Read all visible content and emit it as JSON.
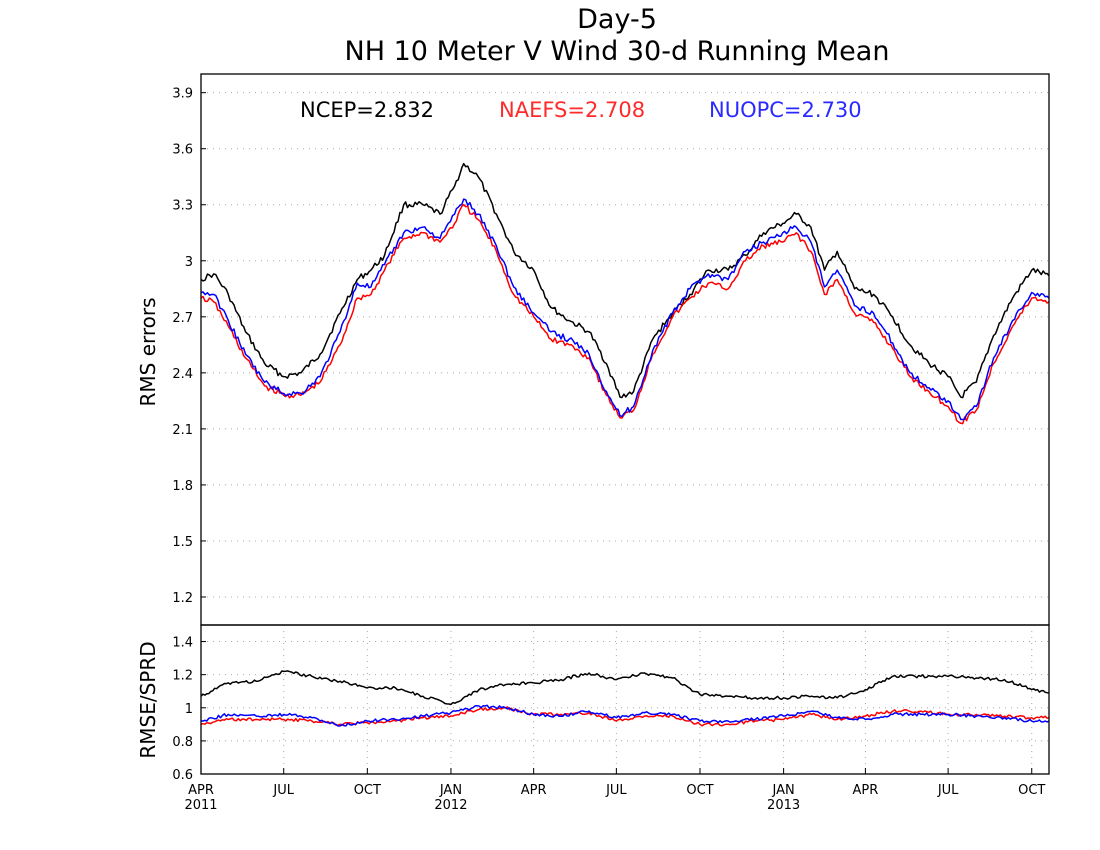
{
  "chart_data": [
    {
      "type": "line",
      "title": "Day-5",
      "subtitle": "NH 10 Meter V Wind 30-d Running Mean",
      "ylabel": "RMS errors",
      "xlabel": "",
      "xlim": [
        "2011-04-01",
        "2013-10-20"
      ],
      "ylim": [
        1.05,
        4.0
      ],
      "yticks": [
        1.2,
        1.5,
        1.8,
        2.1,
        2.4,
        2.7,
        3.0,
        3.3,
        3.6,
        3.9
      ],
      "ytick_labels": [
        "1.2",
        "1.5",
        "1.8",
        "2.1",
        "2.4",
        "2.7",
        "3",
        "3.3",
        "3.6",
        "3.9"
      ],
      "grid": true,
      "legend": "top",
      "summary_labels": [
        "NCEP=2.832",
        "NAEFS=2.708",
        "NUOPC=2.730"
      ],
      "series": [
        {
          "name": "NCEP",
          "color": "#000000",
          "x": [
            "2011-04-01",
            "2011-04-15",
            "2011-05-01",
            "2011-05-20",
            "2011-06-10",
            "2011-07-01",
            "2011-07-20",
            "2011-08-10",
            "2011-09-01",
            "2011-09-20",
            "2011-10-05",
            "2011-10-20",
            "2011-11-10",
            "2011-12-01",
            "2011-12-20",
            "2012-01-05",
            "2012-01-15",
            "2012-01-31",
            "2012-02-20",
            "2012-03-10",
            "2012-04-01",
            "2012-04-20",
            "2012-05-10",
            "2012-06-01",
            "2012-06-20",
            "2012-07-05",
            "2012-07-20",
            "2012-08-10",
            "2012-09-01",
            "2012-09-20",
            "2012-10-10",
            "2012-11-01",
            "2012-11-20",
            "2012-12-10",
            "2012-12-31",
            "2013-01-15",
            "2013-01-31",
            "2013-02-15",
            "2013-03-01",
            "2013-03-20",
            "2013-04-10",
            "2013-05-01",
            "2013-05-20",
            "2013-06-10",
            "2013-07-01",
            "2013-07-15",
            "2013-08-01",
            "2013-08-20",
            "2013-09-10",
            "2013-10-01",
            "2013-10-20"
          ],
          "values": [
            2.9,
            2.93,
            2.82,
            2.62,
            2.45,
            2.38,
            2.4,
            2.5,
            2.72,
            2.9,
            2.95,
            3.03,
            3.3,
            3.3,
            3.25,
            3.4,
            3.52,
            3.45,
            3.25,
            3.05,
            2.95,
            2.75,
            2.68,
            2.62,
            2.45,
            2.27,
            2.3,
            2.58,
            2.72,
            2.82,
            2.95,
            2.95,
            3.03,
            3.15,
            3.2,
            3.25,
            3.18,
            2.95,
            3.05,
            2.85,
            2.82,
            2.7,
            2.55,
            2.45,
            2.38,
            2.27,
            2.35,
            2.6,
            2.8,
            2.95,
            2.92
          ]
        },
        {
          "name": "NAEFS",
          "color": "#ff0000",
          "x": [
            "2011-04-01",
            "2011-04-15",
            "2011-05-01",
            "2011-05-20",
            "2011-06-10",
            "2011-07-01",
            "2011-07-20",
            "2011-08-10",
            "2011-09-01",
            "2011-09-20",
            "2011-10-05",
            "2011-10-20",
            "2011-11-10",
            "2011-12-01",
            "2011-12-20",
            "2012-01-05",
            "2012-01-15",
            "2012-01-31",
            "2012-02-20",
            "2012-03-10",
            "2012-04-01",
            "2012-04-20",
            "2012-05-10",
            "2012-06-01",
            "2012-06-20",
            "2012-07-05",
            "2012-07-20",
            "2012-08-10",
            "2012-09-01",
            "2012-09-20",
            "2012-10-10",
            "2012-11-01",
            "2012-11-20",
            "2012-12-10",
            "2012-12-31",
            "2013-01-15",
            "2013-01-31",
            "2013-02-15",
            "2013-03-01",
            "2013-03-20",
            "2013-04-10",
            "2013-05-01",
            "2013-05-20",
            "2013-06-10",
            "2013-07-01",
            "2013-07-15",
            "2013-08-01",
            "2013-08-20",
            "2013-09-10",
            "2013-10-01",
            "2013-10-20"
          ],
          "values": [
            2.8,
            2.78,
            2.65,
            2.48,
            2.33,
            2.28,
            2.28,
            2.35,
            2.55,
            2.8,
            2.82,
            2.95,
            3.12,
            3.15,
            3.1,
            3.2,
            3.3,
            3.22,
            3.05,
            2.82,
            2.7,
            2.58,
            2.55,
            2.48,
            2.28,
            2.16,
            2.2,
            2.5,
            2.7,
            2.8,
            2.88,
            2.85,
            3.0,
            3.08,
            3.1,
            3.15,
            3.05,
            2.82,
            2.9,
            2.72,
            2.67,
            2.53,
            2.38,
            2.3,
            2.22,
            2.13,
            2.2,
            2.45,
            2.65,
            2.8,
            2.78
          ]
        },
        {
          "name": "NUOPC",
          "color": "#0000ff",
          "x": [
            "2011-04-01",
            "2011-04-15",
            "2011-05-01",
            "2011-05-20",
            "2011-06-10",
            "2011-07-01",
            "2011-07-20",
            "2011-08-10",
            "2011-09-01",
            "2011-09-20",
            "2011-10-05",
            "2011-10-20",
            "2011-11-10",
            "2011-12-01",
            "2011-12-20",
            "2012-01-05",
            "2012-01-15",
            "2012-01-31",
            "2012-02-20",
            "2012-03-10",
            "2012-04-01",
            "2012-04-20",
            "2012-05-10",
            "2012-06-01",
            "2012-06-20",
            "2012-07-05",
            "2012-07-20",
            "2012-08-10",
            "2012-09-01",
            "2012-09-20",
            "2012-10-10",
            "2012-11-01",
            "2012-11-20",
            "2012-12-10",
            "2012-12-31",
            "2013-01-15",
            "2013-01-31",
            "2013-02-15",
            "2013-03-01",
            "2013-03-20",
            "2013-04-10",
            "2013-05-01",
            "2013-05-20",
            "2013-06-10",
            "2013-07-01",
            "2013-07-15",
            "2013-08-01",
            "2013-08-20",
            "2013-09-10",
            "2013-10-01",
            "2013-10-20"
          ],
          "values": [
            2.83,
            2.82,
            2.68,
            2.5,
            2.35,
            2.29,
            2.29,
            2.38,
            2.62,
            2.88,
            2.86,
            2.98,
            3.15,
            3.18,
            3.12,
            3.25,
            3.33,
            3.25,
            3.08,
            2.86,
            2.72,
            2.62,
            2.58,
            2.5,
            2.3,
            2.17,
            2.22,
            2.52,
            2.72,
            2.85,
            2.93,
            2.9,
            3.05,
            3.1,
            3.15,
            3.18,
            3.1,
            2.86,
            2.95,
            2.76,
            2.72,
            2.56,
            2.4,
            2.32,
            2.25,
            2.15,
            2.22,
            2.48,
            2.68,
            2.83,
            2.8
          ]
        }
      ]
    },
    {
      "type": "line",
      "ylabel": "RMSE/SPRD",
      "xlim": [
        "2011-04-01",
        "2013-10-20"
      ],
      "ylim": [
        0.6,
        1.5
      ],
      "yticks": [
        0.6,
        0.8,
        1.0,
        1.2,
        1.4
      ],
      "ytick_labels": [
        "0.6",
        "0.8",
        "1",
        "1.2",
        "1.4"
      ],
      "grid": true,
      "xticks": [
        "2011-04-01",
        "2011-07-01",
        "2011-10-01",
        "2012-01-01",
        "2012-04-01",
        "2012-07-01",
        "2012-10-01",
        "2013-01-01",
        "2013-04-01",
        "2013-07-01",
        "2013-10-01"
      ],
      "xtick_labels": [
        "APR",
        "JUL",
        "OCT",
        "JAN",
        "APR",
        "JUL",
        "OCT",
        "JAN",
        "APR",
        "JUL",
        "OCT"
      ],
      "year_labels": [
        "2011",
        "2012",
        "2013"
      ],
      "series": [
        {
          "name": "NCEP",
          "color": "#000000",
          "x": [
            "2011-04-01",
            "2011-05-01",
            "2011-06-01",
            "2011-07-01",
            "2011-08-01",
            "2011-09-01",
            "2011-10-01",
            "2011-11-01",
            "2011-12-01",
            "2012-01-01",
            "2012-02-01",
            "2012-03-01",
            "2012-04-01",
            "2012-05-01",
            "2012-06-01",
            "2012-07-01",
            "2012-08-01",
            "2012-09-01",
            "2012-10-01",
            "2012-11-01",
            "2012-12-01",
            "2013-01-01",
            "2013-02-01",
            "2013-03-01",
            "2013-04-01",
            "2013-05-01",
            "2013-06-01",
            "2013-07-01",
            "2013-08-01",
            "2013-09-01",
            "2013-10-01",
            "2013-10-20"
          ],
          "values": [
            1.07,
            1.15,
            1.16,
            1.22,
            1.19,
            1.16,
            1.12,
            1.12,
            1.07,
            1.02,
            1.11,
            1.14,
            1.15,
            1.17,
            1.21,
            1.17,
            1.21,
            1.18,
            1.08,
            1.07,
            1.06,
            1.06,
            1.07,
            1.06,
            1.11,
            1.19,
            1.19,
            1.19,
            1.18,
            1.17,
            1.11,
            1.09
          ]
        },
        {
          "name": "NAEFS",
          "color": "#ff0000",
          "x": [
            "2011-04-01",
            "2011-05-01",
            "2011-06-01",
            "2011-07-01",
            "2011-08-01",
            "2011-09-01",
            "2011-10-01",
            "2011-11-01",
            "2011-12-01",
            "2012-01-01",
            "2012-02-01",
            "2012-03-01",
            "2012-04-01",
            "2012-05-01",
            "2012-06-01",
            "2012-07-01",
            "2012-08-01",
            "2012-09-01",
            "2012-10-01",
            "2012-11-01",
            "2012-12-01",
            "2013-01-01",
            "2013-02-01",
            "2013-03-01",
            "2013-04-01",
            "2013-05-01",
            "2013-06-01",
            "2013-07-01",
            "2013-08-01",
            "2013-09-01",
            "2013-10-01",
            "2013-10-20"
          ],
          "values": [
            0.9,
            0.93,
            0.93,
            0.93,
            0.92,
            0.9,
            0.91,
            0.92,
            0.94,
            0.95,
            0.99,
            1.0,
            0.96,
            0.96,
            0.97,
            0.92,
            0.95,
            0.95,
            0.9,
            0.9,
            0.92,
            0.93,
            0.96,
            0.93,
            0.95,
            0.98,
            0.98,
            0.96,
            0.96,
            0.95,
            0.94,
            0.94
          ]
        },
        {
          "name": "NUOPC",
          "color": "#0000ff",
          "x": [
            "2011-04-01",
            "2011-05-01",
            "2011-06-01",
            "2011-07-01",
            "2011-08-01",
            "2011-09-01",
            "2011-10-01",
            "2011-11-01",
            "2011-12-01",
            "2012-01-01",
            "2012-02-01",
            "2012-03-01",
            "2012-04-01",
            "2012-05-01",
            "2012-06-01",
            "2012-07-01",
            "2012-08-01",
            "2012-09-01",
            "2012-10-01",
            "2012-11-01",
            "2012-12-01",
            "2013-01-01",
            "2013-02-01",
            "2013-03-01",
            "2013-04-01",
            "2013-05-01",
            "2013-06-01",
            "2013-07-01",
            "2013-08-01",
            "2013-09-01",
            "2013-10-01",
            "2013-10-20"
          ],
          "values": [
            0.92,
            0.96,
            0.95,
            0.96,
            0.94,
            0.89,
            0.92,
            0.93,
            0.95,
            0.97,
            1.01,
            1.0,
            0.96,
            0.95,
            0.98,
            0.94,
            0.97,
            0.96,
            0.92,
            0.92,
            0.93,
            0.95,
            0.98,
            0.94,
            0.93,
            0.96,
            0.96,
            0.96,
            0.95,
            0.94,
            0.92,
            0.92
          ]
        }
      ]
    }
  ]
}
